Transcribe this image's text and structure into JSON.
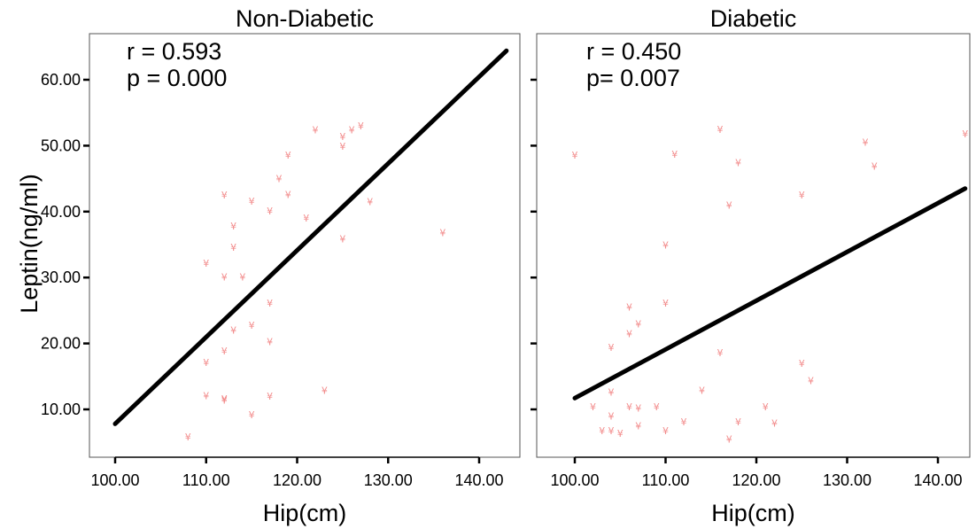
{
  "chart_data": {
    "type": "scatter",
    "ylabel": "Leptin(ng/ml)",
    "ylim": [
      3,
      66
    ],
    "y_ticks": [
      10,
      20,
      30,
      40,
      50,
      60
    ],
    "y_tick_labels": [
      "10.00",
      "20.00",
      "30.00",
      "40.00",
      "50.00",
      "60.00"
    ],
    "point_color": "#f28b8b",
    "line_color": "#000000",
    "panels": [
      {
        "title": "Non-Diabetic",
        "xlabel": "Hip(cm)",
        "xlim": [
          98,
          145
        ],
        "x_ticks": [
          100,
          110,
          120,
          130,
          140
        ],
        "x_tick_labels": [
          "100.00",
          "110.00",
          "120.00",
          "130.00",
          "140.00"
        ],
        "stat_r": "r = 0.593",
        "stat_p": "p = 0.000",
        "fit": {
          "x": [
            100,
            143
          ],
          "y": [
            7.8,
            64.4
          ]
        },
        "points": [
          {
            "x": 108,
            "y": 5.8
          },
          {
            "x": 110,
            "y": 17.1
          },
          {
            "x": 110,
            "y": 12.1
          },
          {
            "x": 110,
            "y": 32.2
          },
          {
            "x": 112,
            "y": 11.4
          },
          {
            "x": 112,
            "y": 11.6
          },
          {
            "x": 112,
            "y": 18.9
          },
          {
            "x": 112,
            "y": 30.1
          },
          {
            "x": 112,
            "y": 42.5
          },
          {
            "x": 113,
            "y": 22.0
          },
          {
            "x": 113,
            "y": 34.6
          },
          {
            "x": 113,
            "y": 37.8
          },
          {
            "x": 114,
            "y": 30.1
          },
          {
            "x": 115,
            "y": 9.2
          },
          {
            "x": 115,
            "y": 22.8
          },
          {
            "x": 115,
            "y": 41.6
          },
          {
            "x": 117,
            "y": 12.0
          },
          {
            "x": 117,
            "y": 20.3
          },
          {
            "x": 117,
            "y": 26.1
          },
          {
            "x": 117,
            "y": 40.1
          },
          {
            "x": 118,
            "y": 45.0
          },
          {
            "x": 119,
            "y": 42.6
          },
          {
            "x": 119,
            "y": 48.6
          },
          {
            "x": 121,
            "y": 39.0
          },
          {
            "x": 122,
            "y": 52.4
          },
          {
            "x": 123,
            "y": 12.9
          },
          {
            "x": 125,
            "y": 35.9
          },
          {
            "x": 125,
            "y": 49.9
          },
          {
            "x": 125,
            "y": 51.4
          },
          {
            "x": 126,
            "y": 52.4
          },
          {
            "x": 127,
            "y": 53.0
          },
          {
            "x": 128,
            "y": 41.5
          },
          {
            "x": 136,
            "y": 36.8
          }
        ]
      },
      {
        "title": "Diabetic",
        "xlabel": "Hip(cm)",
        "xlim": [
          98,
          145
        ],
        "x_ticks": [
          100,
          110,
          120,
          130,
          140
        ],
        "x_tick_labels": [
          "100.00",
          "110.00",
          "120.00",
          "130.00",
          "140.00"
        ],
        "stat_r": "r = 0.450",
        "stat_p": "p= 0.007",
        "fit": {
          "x": [
            100,
            143
          ],
          "y": [
            11.7,
            43.5
          ]
        },
        "points": [
          {
            "x": 100,
            "y": 48.6
          },
          {
            "x": 102,
            "y": 10.4
          },
          {
            "x": 103,
            "y": 6.8
          },
          {
            "x": 104,
            "y": 6.8
          },
          {
            "x": 104,
            "y": 9.0
          },
          {
            "x": 104,
            "y": 12.6
          },
          {
            "x": 104,
            "y": 19.4
          },
          {
            "x": 105,
            "y": 6.4
          },
          {
            "x": 106,
            "y": 10.4
          },
          {
            "x": 106,
            "y": 21.5
          },
          {
            "x": 106,
            "y": 25.5
          },
          {
            "x": 107,
            "y": 7.5
          },
          {
            "x": 107,
            "y": 10.2
          },
          {
            "x": 107,
            "y": 23.0
          },
          {
            "x": 109,
            "y": 10.4
          },
          {
            "x": 110,
            "y": 6.8
          },
          {
            "x": 110,
            "y": 26.1
          },
          {
            "x": 110,
            "y": 34.9
          },
          {
            "x": 111,
            "y": 48.7
          },
          {
            "x": 112,
            "y": 8.1
          },
          {
            "x": 114,
            "y": 12.9
          },
          {
            "x": 116,
            "y": 18.6
          },
          {
            "x": 116,
            "y": 52.5
          },
          {
            "x": 117,
            "y": 5.5
          },
          {
            "x": 117,
            "y": 41.0
          },
          {
            "x": 118,
            "y": 8.1
          },
          {
            "x": 118,
            "y": 47.4
          },
          {
            "x": 121,
            "y": 10.4
          },
          {
            "x": 122,
            "y": 7.9
          },
          {
            "x": 125,
            "y": 17.0
          },
          {
            "x": 125,
            "y": 42.5
          },
          {
            "x": 126,
            "y": 14.4
          },
          {
            "x": 132,
            "y": 50.5
          },
          {
            "x": 133,
            "y": 46.9
          },
          {
            "x": 143,
            "y": 51.8
          }
        ]
      }
    ]
  }
}
